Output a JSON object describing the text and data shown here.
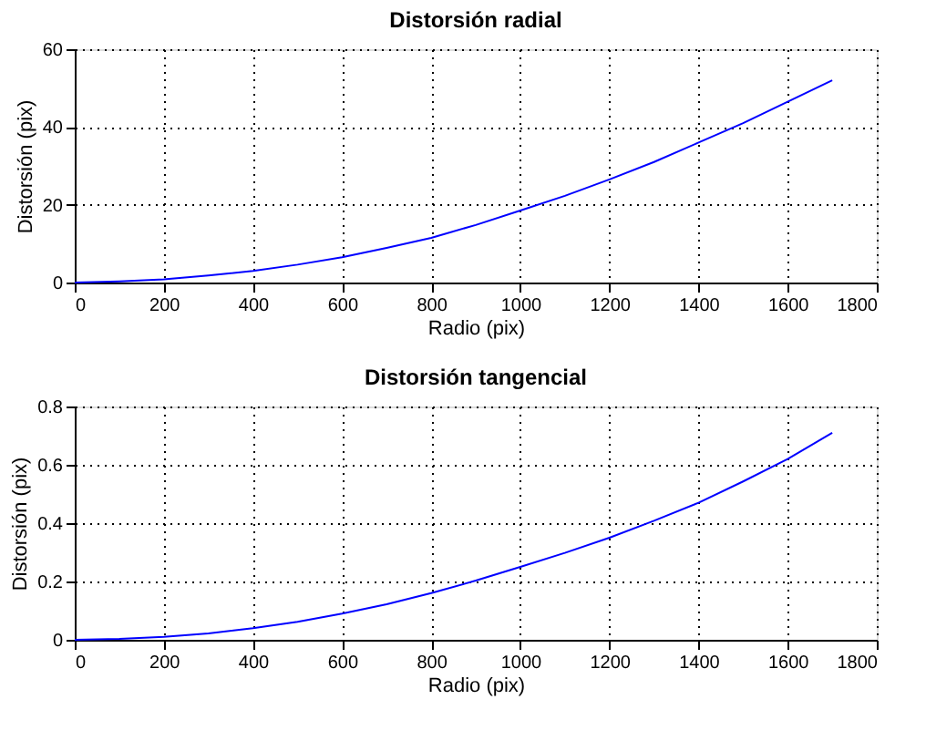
{
  "chart_data": [
    {
      "type": "line",
      "title": "Distorsión radial",
      "xlabel": "Radio (pix)",
      "ylabel": "Distorsión (pix)",
      "x": [
        0,
        100,
        200,
        300,
        400,
        500,
        600,
        700,
        800,
        900,
        1000,
        1100,
        1200,
        1300,
        1400,
        1500,
        1600,
        1700
      ],
      "series": [
        {
          "color": "#0000ff",
          "values": [
            0,
            0.3,
            0.8,
            1.8,
            3,
            4.6,
            6.5,
            8.9,
            11.5,
            14.8,
            18.5,
            22.3,
            26.5,
            31,
            36,
            41,
            46.5,
            52
          ]
        }
      ],
      "xlim": [
        0,
        1800
      ],
      "xticks": [
        0,
        200,
        400,
        600,
        800,
        1000,
        1200,
        1400,
        1600,
        1800
      ],
      "ylim": [
        0,
        60
      ],
      "yticks": [
        0,
        20,
        40,
        60
      ],
      "grid": true
    },
    {
      "type": "line",
      "title": "Distorsión tangencial",
      "xlabel": "Radio (pix)",
      "ylabel": "Distorsión (pix)",
      "x": [
        0,
        100,
        200,
        300,
        400,
        500,
        600,
        700,
        800,
        900,
        1000,
        1100,
        1200,
        1300,
        1400,
        1500,
        1600,
        1700
      ],
      "series": [
        {
          "color": "#0000ff",
          "values": [
            0,
            0.003,
            0.01,
            0.022,
            0.04,
            0.062,
            0.09,
            0.122,
            0.16,
            0.203,
            0.25,
            0.298,
            0.35,
            0.408,
            0.47,
            0.543,
            0.62,
            0.71
          ]
        }
      ],
      "xlim": [
        0,
        1800
      ],
      "xticks": [
        0,
        200,
        400,
        600,
        800,
        1000,
        1200,
        1400,
        1600,
        1800
      ],
      "ylim": [
        0,
        0.8
      ],
      "yticks": [
        0,
        0.2,
        0.4,
        0.6,
        0.8
      ],
      "grid": true
    }
  ]
}
